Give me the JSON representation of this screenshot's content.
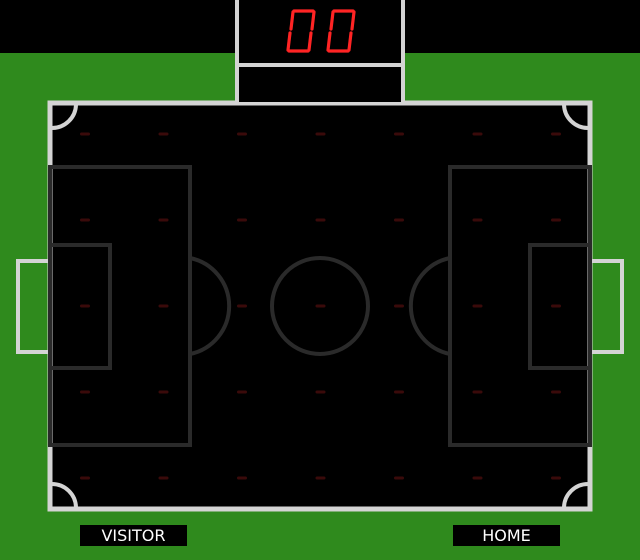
{
  "score": {
    "left_digit": "0",
    "right_digit": "0"
  },
  "teams": {
    "visitor": "VISITOR",
    "home": "HOME"
  },
  "led_grid": {
    "columns": 7,
    "rows": 5,
    "lit": []
  },
  "colors": {
    "grass": "#2f8a1d",
    "field": "#000000",
    "line": "#d4d4d4",
    "markings": "#2a2a2a",
    "led_on": "#ff2a2a",
    "led_off": "#3a0a0a",
    "digit_on": "#ff2424"
  }
}
